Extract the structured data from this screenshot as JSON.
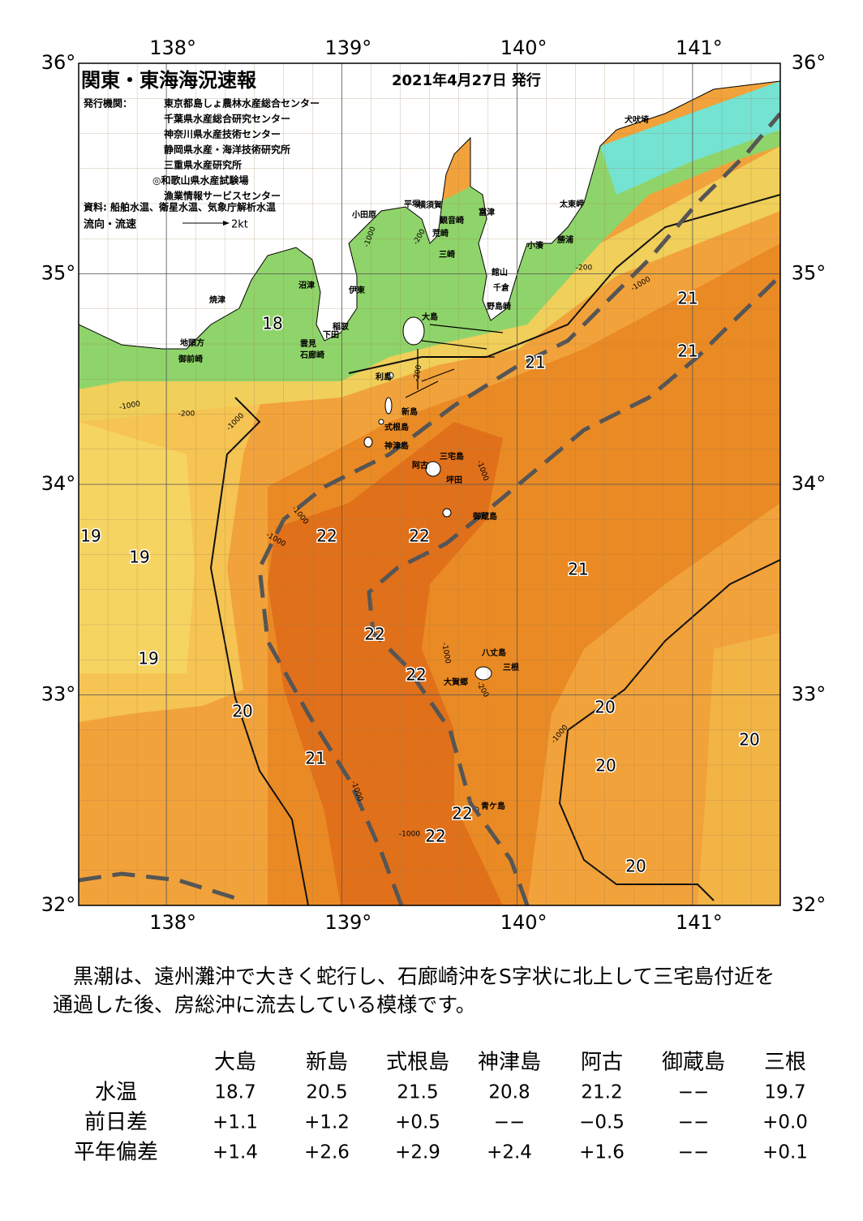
{
  "header": {
    "title": "関東・東海海況速報",
    "date": "2021年4月27日 発行",
    "issuer_label": "発行機関：",
    "issuers": [
      "東京都島しょ農林水産総合センター",
      "千葉県水産総合研究センター",
      "神奈川県水産技術センター",
      "静岡県水産・海洋技術研究所",
      "三重県水産研究所",
      "◎和歌山県水産試験場",
      "漁業情報サービスセンター"
    ],
    "source": "資料: 船舶水温、衛星水温、気象庁解析水温",
    "legend_label": "流向・流速",
    "legend_speed": "2kt"
  },
  "map": {
    "xlim": [
      137.5,
      141.5
    ],
    "ylim": [
      32,
      36
    ],
    "lon_ticks": [
      {
        "value": 138,
        "label": "138°"
      },
      {
        "value": 139,
        "label": "139°"
      },
      {
        "value": 140,
        "label": "140°"
      },
      {
        "value": 141,
        "label": "141°"
      }
    ],
    "lat_ticks": [
      {
        "value": 32,
        "label": "32°"
      },
      {
        "value": 33,
        "label": "33°"
      },
      {
        "value": 34,
        "label": "34°"
      },
      {
        "value": 35,
        "label": "35°"
      },
      {
        "value": 36,
        "label": "36°"
      }
    ],
    "place_names": [
      "犬吠埼",
      "太東岬",
      "勝浦",
      "小湊",
      "富津",
      "横須賀",
      "観音崎",
      "荒崎",
      "三崎",
      "館山",
      "千倉",
      "野島崎",
      "平塚",
      "小田原",
      "伊東",
      "沼津",
      "焼津",
      "稲取",
      "下田",
      "雲見",
      "石廊崎",
      "地頭方",
      "御前崎",
      "大島",
      "利島",
      "新島",
      "式根島",
      "神津島",
      "三宅島",
      "阿古",
      "坪田",
      "御蔵島",
      "八丈島",
      "三根",
      "大賀郷",
      "青ケ島"
    ],
    "temperature_labels": [
      18,
      21,
      21,
      21,
      19,
      19,
      22,
      22,
      21,
      22,
      19,
      22,
      20,
      20,
      20,
      21,
      20,
      22,
      22,
      20
    ],
    "depth_labels": [
      -1000,
      -200,
      -1000,
      -200,
      -1000,
      -200,
      -1000,
      -1000,
      -1000,
      -200,
      -1000,
      -1000,
      -200,
      -1000,
      -1000,
      -1000
    ]
  },
  "summary": [
    "黒潮は、遠州灘沖で大きく蛇行し、石廊崎沖をS字状に北上して三宅島付近を",
    "通過した後、房総沖に流去している模様です。"
  ],
  "table": {
    "columns": [
      "大島",
      "新島",
      "式根島",
      "神津島",
      "阿古",
      "御蔵島",
      "三根"
    ],
    "rows": [
      {
        "label": "水温",
        "values": [
          18.7,
          20.5,
          21.5,
          20.8,
          21.2,
          "−−",
          19.7
        ]
      },
      {
        "label": "前日差",
        "values": [
          "+1.1",
          "+1.2",
          "+0.5",
          "−−",
          "−0.5",
          "−−",
          "+0.0"
        ]
      },
      {
        "label": "平年偏差",
        "values": [
          "+1.4",
          "+2.6",
          "+2.9",
          "+2.4",
          "+1.6",
          "−−",
          "+0.1"
        ]
      }
    ]
  }
}
